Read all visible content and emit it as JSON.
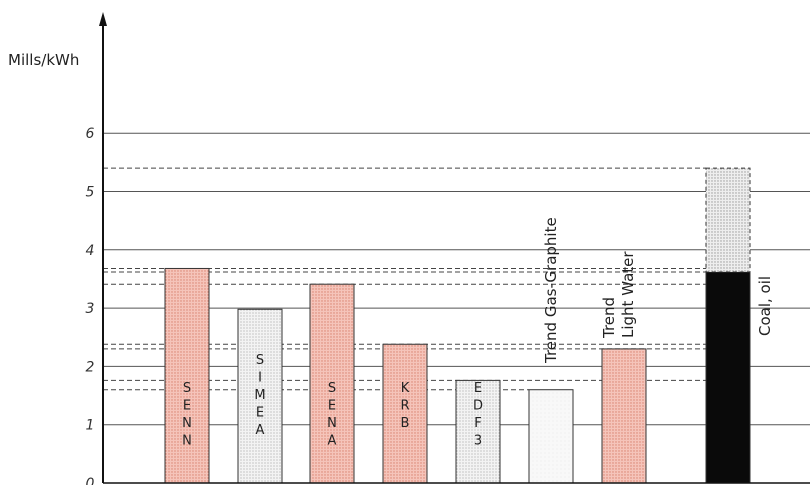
{
  "chart_data": {
    "type": "bar",
    "ylabel": "Mills/kWh",
    "ylim": [
      0,
      6
    ],
    "yticks": [
      "0",
      "1",
      "2",
      "3",
      "4",
      "5",
      "6"
    ],
    "grid": true,
    "categories": [
      "SENN",
      "SIMEA",
      "SENA",
      "KRB",
      "EDF 3",
      "Trend Gas-Graphite",
      "Trend Light Water",
      "Coal, oil"
    ],
    "bars": [
      {
        "label_lines": [
          "S",
          "E",
          "N",
          "N"
        ],
        "value": 3.68,
        "fill": "pink"
      },
      {
        "label_lines": [
          "S",
          "I",
          "M",
          "E",
          "A"
        ],
        "value": 2.98,
        "fill": "grey"
      },
      {
        "label_lines": [
          "S",
          "E",
          "N",
          "A"
        ],
        "value": 3.41,
        "fill": "pink"
      },
      {
        "label_lines": [
          "K",
          "R",
          "B"
        ],
        "value": 2.38,
        "fill": "pink"
      },
      {
        "label_lines": [
          "E",
          "D",
          "F",
          "3"
        ],
        "value": 1.76,
        "fill": "grey"
      },
      {
        "label_vertical": [
          "Trend Gas-Graphite"
        ],
        "value": 1.6,
        "fill": "light"
      },
      {
        "label_vertical": [
          "Trend",
          "Light Water"
        ],
        "value": 2.3,
        "fill": "pink"
      },
      {
        "label_vertical": [
          "Coal, oil"
        ],
        "value": 3.62,
        "upper_value": 5.4,
        "fill": "black"
      }
    ],
    "dashed_levels": [
      5.4,
      3.68,
      3.62,
      3.41,
      2.38,
      2.3,
      1.76,
      1.6
    ],
    "colors": {
      "pink": "#f2b3a8",
      "grey": "#e6e6e6",
      "light": "#f5f5f5",
      "black": "#0a0a0a",
      "dotted": "#dcdcdc"
    }
  }
}
